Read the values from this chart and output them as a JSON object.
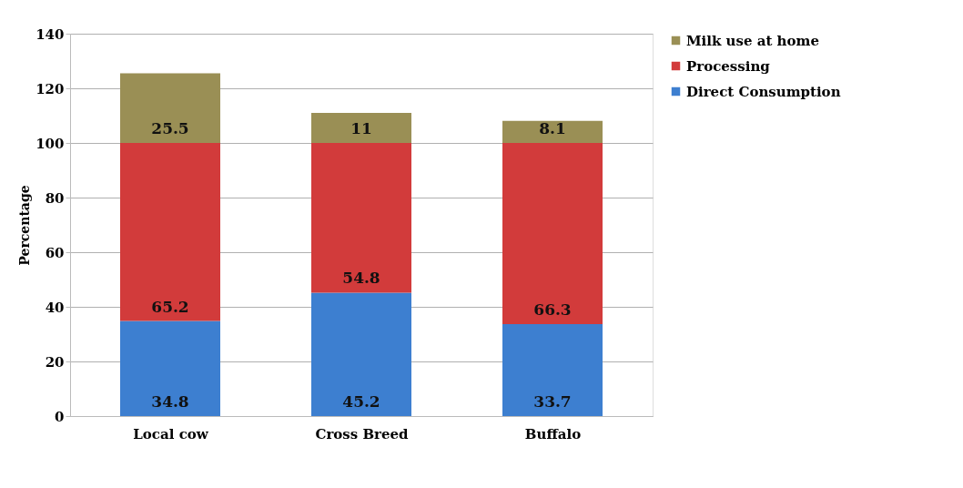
{
  "chart_data": {
    "type": "bar",
    "stacked": true,
    "ylabel": "Percentage",
    "categories": [
      "Local cow",
      "Cross Breed",
      "Buffalo"
    ],
    "series": [
      {
        "name": "Direct Consumption",
        "color": "#3d7fd0",
        "values": [
          34.8,
          45.2,
          33.7
        ]
      },
      {
        "name": "Processing",
        "color": "#d23b3b",
        "values": [
          65.2,
          54.8,
          66.3
        ]
      },
      {
        "name": "Milk use at home",
        "color": "#9a8f55",
        "values": [
          25.5,
          11,
          8.1
        ]
      }
    ],
    "ylim": [
      0,
      140
    ],
    "yticks": [
      0,
      20,
      40,
      60,
      80,
      100,
      120,
      140
    ],
    "grid": "y",
    "legend": "right",
    "data_labels": true
  }
}
